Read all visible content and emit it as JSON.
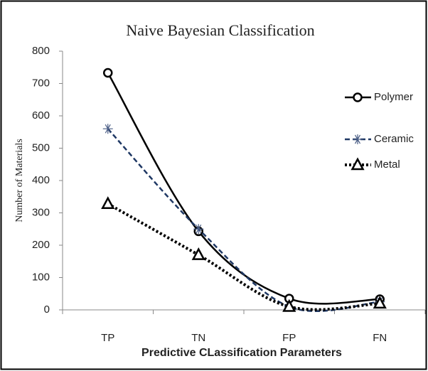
{
  "chart_data": {
    "type": "line",
    "title": "Naive Bayesian Classification",
    "x_label": "Predictive CLassification Parameters",
    "y_label": "Number of Materials",
    "categories": [
      "TP",
      "TN",
      "FP",
      "FN"
    ],
    "series": [
      {
        "name": "Polymer",
        "color": "#000000",
        "marker": "circle",
        "linestyle": "solid",
        "values": [
          733,
          243,
          35,
          33
        ]
      },
      {
        "name": "Ceramic",
        "color": "#1f3864",
        "marker": "asterisk",
        "linestyle": "dashed",
        "values": [
          560,
          250,
          10,
          25
        ]
      },
      {
        "name": "Metal",
        "color": "#000000",
        "marker": "triangle",
        "linestyle": "dotted",
        "values": [
          328,
          170,
          10,
          20
        ]
      }
    ],
    "ylim": [
      0,
      800
    ],
    "yticks": [
      0,
      100,
      200,
      300,
      400,
      500,
      600,
      700,
      800
    ],
    "grid": false,
    "smooth": true
  }
}
